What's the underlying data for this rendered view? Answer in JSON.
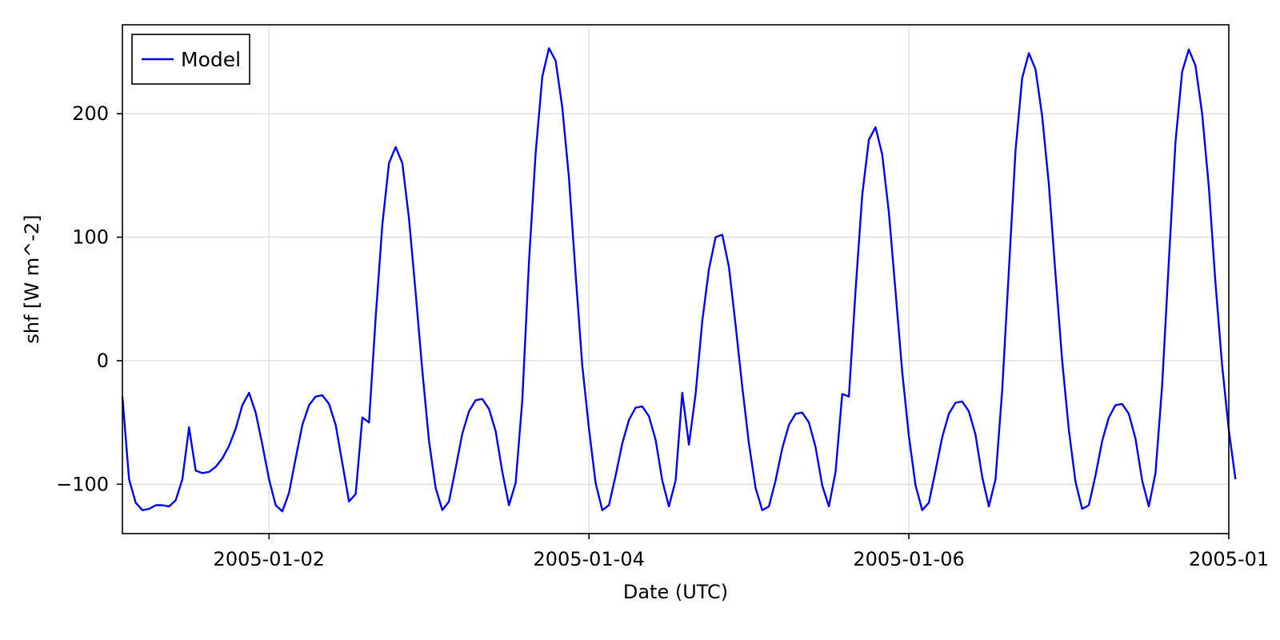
{
  "chart_data": {
    "type": "line",
    "title": "",
    "xlabel": "Date (UTC)",
    "ylabel": "shf [W m^-2]",
    "x_axis_type": "datetime",
    "x_start": "2005-01-01T02:00:00Z",
    "x_step_hours": 1,
    "xlim": [
      "2005-01-01T02:00:00Z",
      "2005-01-08T00:00:00Z"
    ],
    "xticks": [
      {
        "label": "2005-01-02",
        "value": "2005-01-02T00:00:00Z"
      },
      {
        "label": "2005-01-04",
        "value": "2005-01-04T00:00:00Z"
      },
      {
        "label": "2005-01-06",
        "value": "2005-01-06T00:00:00Z"
      },
      {
        "label": "2005-01",
        "value": "2005-01-08T00:00:00Z"
      }
    ],
    "ylim": [
      -140,
      272
    ],
    "yticks": [
      {
        "label": "−100",
        "value": -100
      },
      {
        "label": "0",
        "value": 0
      },
      {
        "label": "100",
        "value": 100
      },
      {
        "label": "200",
        "value": 200
      }
    ],
    "grid": true,
    "legend_position": "top-left",
    "series": [
      {
        "name": "Model",
        "color": "#0000ff",
        "values": [
          -29,
          -96,
          -115,
          -121,
          -120,
          -117,
          -117,
          -118,
          -113,
          -96,
          -54,
          -89,
          -91,
          -90,
          -86,
          -79,
          -69,
          -55,
          -36,
          -26,
          -42,
          -68,
          -96,
          -117,
          -122,
          -107,
          -79,
          -52,
          -36,
          -29,
          -28,
          -35,
          -52,
          -83,
          -114,
          -108,
          -46,
          -50,
          35,
          110,
          160,
          173,
          160,
          115,
          55,
          -8,
          -65,
          -103,
          -121,
          -114,
          -87,
          -59,
          -41,
          -32,
          -31,
          -39,
          -57,
          -90,
          -117,
          -99,
          -32,
          80,
          168,
          230,
          253,
          243,
          205,
          148,
          70,
          -4,
          -55,
          -99,
          -121,
          -117,
          -93,
          -67,
          -48,
          -38,
          -37,
          -45,
          -64,
          -97,
          -118,
          -97,
          -26,
          -68,
          -27,
          32,
          74,
          100,
          102,
          76,
          29,
          -21,
          -67,
          -103,
          -121,
          -118,
          -97,
          -71,
          -52,
          -43,
          -42,
          -50,
          -70,
          -101,
          -118,
          -90,
          -27,
          -29,
          57,
          134,
          179,
          189,
          167,
          120,
          56,
          -9,
          -61,
          -101,
          -121,
          -115,
          -89,
          -62,
          -43,
          -34,
          -33,
          -41,
          -60,
          -94,
          -118,
          -96,
          -24,
          73,
          170,
          229,
          249,
          236,
          198,
          143,
          70,
          0,
          -56,
          -98,
          -120,
          -117,
          -93,
          -65,
          -46,
          -36,
          -35,
          -43,
          -63,
          -97,
          -118,
          -91,
          -20,
          80,
          177,
          234,
          252,
          239,
          200,
          141,
          63,
          -4,
          -56,
          -96
        ]
      }
    ]
  }
}
